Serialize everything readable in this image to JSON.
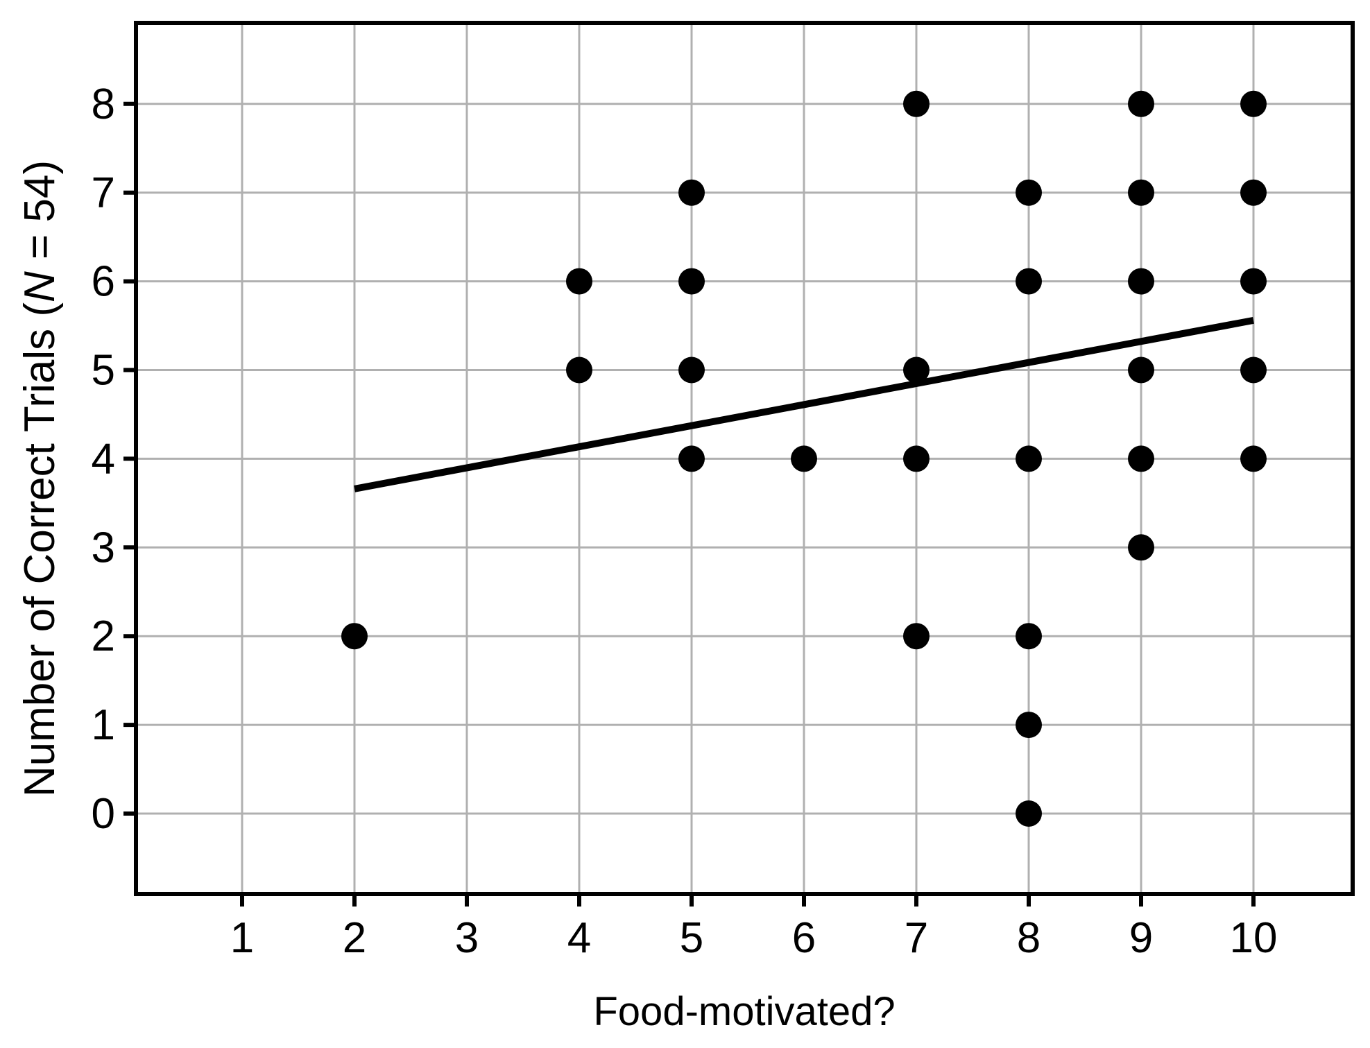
{
  "chart_data": {
    "type": "scatter",
    "title": "",
    "xlabel": "Food-motivated?",
    "ylabel": "Number of Correct Trials (N = 54)",
    "ylabel_parts": {
      "prefix": "Number of Correct Trials (",
      "italic": "N",
      "suffix": " = 54)"
    },
    "x_ticks": [
      1,
      2,
      3,
      4,
      5,
      6,
      7,
      8,
      9,
      10
    ],
    "y_ticks": [
      0,
      1,
      2,
      3,
      4,
      5,
      6,
      7,
      8
    ],
    "xlim": [
      0.06,
      10.88
    ],
    "ylim": [
      -0.91,
      8.91
    ],
    "grid": true,
    "legend": "none",
    "points": [
      {
        "x": 2,
        "y": 2
      },
      {
        "x": 4,
        "y": 5
      },
      {
        "x": 4,
        "y": 6
      },
      {
        "x": 5,
        "y": 4
      },
      {
        "x": 5,
        "y": 5
      },
      {
        "x": 5,
        "y": 6
      },
      {
        "x": 5,
        "y": 7
      },
      {
        "x": 6,
        "y": 4
      },
      {
        "x": 7,
        "y": 2
      },
      {
        "x": 7,
        "y": 4
      },
      {
        "x": 7,
        "y": 5
      },
      {
        "x": 7,
        "y": 8
      },
      {
        "x": 8,
        "y": 0
      },
      {
        "x": 8,
        "y": 1
      },
      {
        "x": 8,
        "y": 2
      },
      {
        "x": 8,
        "y": 4
      },
      {
        "x": 8,
        "y": 6
      },
      {
        "x": 8,
        "y": 7
      },
      {
        "x": 9,
        "y": 3
      },
      {
        "x": 9,
        "y": 4
      },
      {
        "x": 9,
        "y": 5
      },
      {
        "x": 9,
        "y": 6
      },
      {
        "x": 9,
        "y": 7
      },
      {
        "x": 9,
        "y": 8
      },
      {
        "x": 10,
        "y": 4
      },
      {
        "x": 10,
        "y": 5
      },
      {
        "x": 10,
        "y": 6
      },
      {
        "x": 10,
        "y": 7
      },
      {
        "x": 10,
        "y": 8
      }
    ],
    "regression_line": {
      "x1": 2.0,
      "y1": 3.66,
      "x2": 10.0,
      "y2": 5.56
    },
    "colors": {
      "background": "#ffffff",
      "point": "#000000",
      "regression_line": "#000000",
      "grid": "#b0b0b0",
      "axis": "#000000",
      "text": "#000000"
    }
  }
}
